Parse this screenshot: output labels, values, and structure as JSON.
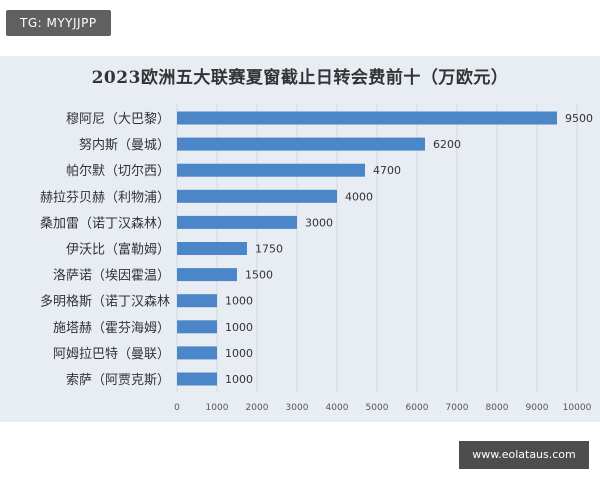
{
  "watermark_tag": "TG: MYYJJPP",
  "source_url": "www.eolataus.com",
  "colors": {
    "bar": "#4a86c8",
    "panel": "#e8edf3",
    "grid": "#d3d9e1"
  },
  "chart_data": {
    "type": "bar",
    "orientation": "horizontal",
    "title": "2023欧洲五大联赛夏窗截止日转会费前十（万欧元）",
    "categories": [
      "穆阿尼（大巴黎）",
      "努内斯（曼城）",
      "帕尔默（切尔西）",
      "赫拉芬贝赫（利物浦）",
      "桑加雷（诺丁汉森林）",
      "伊沃比（富勒姆）",
      "洛萨诺（埃因霍温）",
      "多明格斯（诺丁汉森林",
      "施塔赫（霍芬海姆）",
      "阿姆拉巴特（曼联）",
      "索萨（阿贾克斯）"
    ],
    "values": [
      9500,
      6200,
      4700,
      4000,
      3000,
      1750,
      1500,
      1000,
      1000,
      1000,
      1000
    ],
    "value_labels": [
      "9500",
      "6200",
      "4700",
      "4000",
      "3000",
      "1750",
      "1500",
      "1000",
      "1000",
      "1000",
      "1000"
    ],
    "xlim": [
      0,
      10000
    ],
    "xticks": [
      "0",
      "1000",
      "2000",
      "3000",
      "4000",
      "5000",
      "6000",
      "7000",
      "8000",
      "9000",
      "10000"
    ],
    "grid": true,
    "legend": "none"
  }
}
